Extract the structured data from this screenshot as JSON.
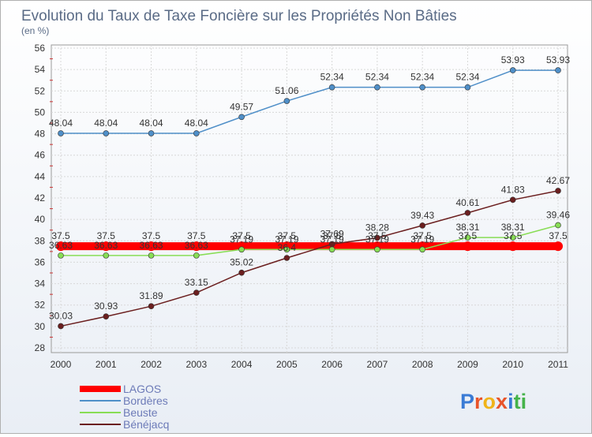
{
  "chart_data": {
    "type": "line",
    "title": "Evolution du Taux de Taxe Foncière sur les Propriétés Non Bâties",
    "subtitle": "(en %)",
    "x": [
      "2000",
      "2001",
      "2002",
      "2003",
      "2004",
      "2005",
      "2006",
      "2007",
      "2008",
      "2009",
      "2010",
      "2011"
    ],
    "ylim": [
      28,
      56
    ],
    "yticks": [
      28,
      30,
      32,
      34,
      36,
      38,
      40,
      42,
      44,
      46,
      48,
      50,
      52,
      54,
      56
    ],
    "grid": true,
    "legend_position": "bottom-left",
    "series": [
      {
        "name": "LAGOS",
        "color": "#ff0000",
        "values": [
          37.5,
          37.5,
          37.5,
          37.5,
          37.5,
          37.5,
          37.5,
          37.5,
          37.5,
          37.5,
          37.5,
          37.5
        ],
        "labels": [
          "37.5",
          "37.5",
          "37.5",
          "37.5",
          "37.5",
          "37.5",
          "37.5",
          "37.5",
          "37.5",
          "37.5",
          "37.5",
          "37.5"
        ]
      },
      {
        "name": "Bordères",
        "color": "#4f8fc8",
        "values": [
          48.04,
          48.04,
          48.04,
          48.04,
          49.57,
          51.06,
          52.34,
          52.34,
          52.34,
          52.34,
          53.93,
          53.93
        ],
        "labels": [
          "48.04",
          "48.04",
          "48.04",
          "48.04",
          "49.57",
          "51.06",
          "52.34",
          "52.34",
          "52.34",
          "52.34",
          "53.93",
          "53.93"
        ]
      },
      {
        "name": "Beuste",
        "color": "#88dd55",
        "values": [
          36.63,
          36.63,
          36.63,
          36.63,
          37.19,
          37.19,
          37.19,
          37.19,
          37.19,
          38.31,
          38.31,
          39.46
        ],
        "labels": [
          "36.63",
          "36.63",
          "36.63",
          "36.63",
          "37.19",
          "37.19",
          "37.19",
          "37.19",
          "37.19",
          "38.31",
          "38.31",
          "39.46"
        ]
      },
      {
        "name": "Bénéjacq",
        "color": "#6b1f1f",
        "values": [
          30.03,
          30.93,
          31.89,
          33.15,
          35.02,
          36.4,
          37.69,
          38.28,
          39.43,
          40.61,
          41.83,
          42.67
        ],
        "labels": [
          "30.03",
          "30.93",
          "31.89",
          "33.15",
          "35.02",
          "36.4",
          "37.69",
          "38.28",
          "39.43",
          "40.61",
          "41.83",
          "42.67"
        ]
      }
    ]
  },
  "watermark": "Proxiti"
}
